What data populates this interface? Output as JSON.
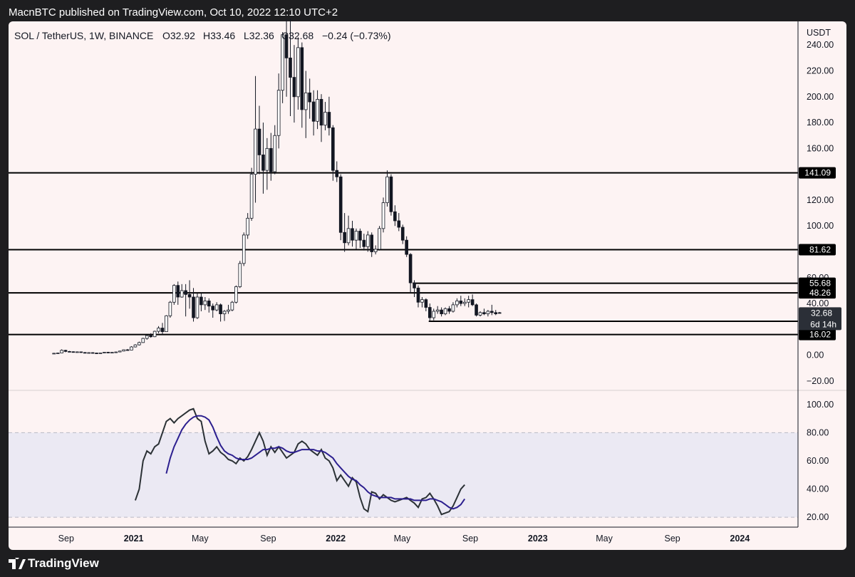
{
  "publisher_line": "MacnBTC published on TradingView.com, Oct 10, 2022 12:10 UTC+2",
  "brand": "TradingView",
  "colors": {
    "chart_bg": "#fdf3f3",
    "outer_bg": "#1e1e20",
    "rsi_band": "#ebe9f3",
    "rsi_ma": "#2c1f8f",
    "rsi_line": "#2b3135",
    "candle_stroke": "#131722"
  },
  "icons": {
    "brand_logo": "tradingview-logo-icon"
  },
  "chart_data": [
    {
      "type": "candlestick",
      "symbol": "SOL / TetherUS, 1W, BINANCE",
      "ohlc_label": {
        "open": "O32.92",
        "high": "H33.46",
        "low": "L32.36",
        "close": "C32.68",
        "change": "−0.24 (−0.73%)"
      },
      "currency_label": "USDT",
      "ylim": [
        -25,
        255
      ],
      "y_ticks": [
        "240.00",
        "220.00",
        "200.00",
        "180.00",
        "160.00",
        "140.00",
        "120.00",
        "100.00",
        "80.00",
        "60.00",
        "40.00",
        "20.00",
        "0.00",
        "−20.00"
      ],
      "x_ticks": [
        "Sep",
        "2021",
        "May",
        "Sep",
        "2022",
        "May",
        "Sep",
        "2023",
        "May",
        "Sep",
        "2024"
      ],
      "x_tick_dates": [
        "2020-09-01",
        "2021-01-01",
        "2021-05-01",
        "2021-09-01",
        "2022-01-01",
        "2022-05-01",
        "2022-09-01",
        "2023-01-01",
        "2023-05-01",
        "2023-09-01",
        "2024-01-01"
      ],
      "x_range": [
        "2020-05-20",
        "2024-04-15"
      ],
      "horizontal_levels": [
        {
          "value": 141.09,
          "label": "141.09",
          "start": "2020-05-20"
        },
        {
          "value": 81.62,
          "label": "81.62",
          "start": "2020-05-20"
        },
        {
          "value": 55.68,
          "label": "55.68",
          "start": "2022-05-20"
        },
        {
          "value": 48.26,
          "label": "48.26",
          "start": "2020-05-20"
        },
        {
          "value": 26.26,
          "label": "26.26",
          "start": "2022-06-18"
        },
        {
          "value": 16.02,
          "label": "16.02",
          "start": "2020-05-20"
        }
      ],
      "price_tag": {
        "value": 32.68,
        "label": "32.68",
        "countdown": "6d 14h"
      },
      "x_weekly_start": "2020-08-10",
      "candles": [
        [
          1.2,
          1.8,
          1.0,
          1.5
        ],
        [
          1.5,
          2.0,
          1.3,
          1.7
        ],
        [
          1.7,
          4.5,
          1.6,
          3.8
        ],
        [
          3.8,
          4.2,
          2.3,
          2.9
        ],
        [
          2.9,
          3.3,
          2.4,
          2.7
        ],
        [
          2.7,
          3.0,
          2.2,
          2.4
        ],
        [
          2.4,
          2.9,
          2.2,
          2.6
        ],
        [
          2.6,
          2.7,
          1.9,
          2.1
        ],
        [
          2.1,
          2.4,
          1.6,
          1.8
        ],
        [
          1.8,
          2.3,
          1.7,
          2.0
        ],
        [
          2.0,
          2.2,
          1.5,
          1.7
        ],
        [
          1.7,
          1.9,
          1.4,
          1.6
        ],
        [
          1.6,
          2.0,
          1.5,
          1.8
        ],
        [
          1.8,
          2.5,
          1.7,
          2.3
        ],
        [
          2.3,
          2.6,
          1.9,
          2.0
        ],
        [
          2.0,
          2.4,
          1.8,
          2.2
        ],
        [
          2.2,
          2.8,
          2.0,
          2.5
        ],
        [
          2.5,
          3.5,
          2.4,
          3.2
        ],
        [
          3.2,
          4.5,
          3.0,
          4.2
        ],
        [
          4.2,
          4.8,
          3.6,
          4.0
        ],
        [
          4.0,
          7.0,
          3.9,
          6.4
        ],
        [
          6.4,
          8.5,
          6.0,
          8.0
        ],
        [
          8.0,
          10.5,
          7.5,
          9.8
        ],
        [
          9.8,
          13.5,
          9.5,
          13.0
        ],
        [
          13.0,
          15.8,
          12.0,
          15.2
        ],
        [
          15.2,
          17.0,
          13.5,
          14.3
        ],
        [
          14.3,
          19.0,
          14.0,
          18.5
        ],
        [
          18.5,
          22.5,
          17.0,
          21.0
        ],
        [
          21.0,
          25.0,
          16.0,
          18.2
        ],
        [
          18.2,
          31.0,
          18.0,
          30.5
        ],
        [
          30.5,
          42.0,
          29.0,
          41.0
        ],
        [
          41.0,
          55.0,
          39.0,
          54.0
        ],
        [
          54.0,
          57.0,
          39.0,
          45.0
        ],
        [
          45.0,
          55.0,
          44.5,
          50.0
        ],
        [
          50.0,
          55.0,
          30.0,
          47.0
        ],
        [
          47.0,
          58.0,
          36.0,
          45.0
        ],
        [
          45.0,
          52.0,
          26.0,
          29.0
        ],
        [
          29.0,
          48.0,
          28.0,
          45.0
        ],
        [
          45.0,
          48.0,
          34.0,
          39.0
        ],
        [
          39.0,
          45.0,
          35.0,
          42.0
        ],
        [
          42.0,
          44.0,
          33.0,
          38.0
        ],
        [
          38.0,
          40.0,
          29.0,
          35.0
        ],
        [
          35.0,
          41.0,
          34.0,
          39.0
        ],
        [
          39.0,
          40.0,
          26.0,
          32.0
        ],
        [
          32.0,
          35.0,
          26.5,
          34.0
        ],
        [
          34.0,
          39.0,
          32.0,
          35.0
        ],
        [
          35.0,
          42.0,
          34.0,
          41.0
        ],
        [
          41.0,
          54.0,
          40.0,
          53.0
        ],
        [
          53.0,
          73.0,
          52.0,
          71.0
        ],
        [
          71.0,
          95.0,
          69.0,
          93.0
        ],
        [
          93.0,
          110.0,
          90.0,
          106.0
        ],
        [
          106.0,
          145.0,
          104.0,
          140.0
        ],
        [
          140.0,
          216.0,
          118.0,
          175.0
        ],
        [
          175.0,
          193.0,
          140.0,
          155.0
        ],
        [
          155.0,
          180.0,
          125.0,
          143.0
        ],
        [
          143.0,
          168.0,
          128.0,
          160.0
        ],
        [
          160.0,
          172.0,
          135.0,
          142.0
        ],
        [
          142.0,
          178.0,
          140.0,
          170.0
        ],
        [
          170.0,
          218.0,
          160.0,
          205.0
        ],
        [
          205.0,
          250.0,
          195.0,
          248.0
        ],
        [
          248.0,
          260.0,
          200.0,
          230.0
        ],
        [
          230.0,
          260.0,
          185.0,
          215.0
        ],
        [
          215.0,
          240.0,
          180.0,
          200.0
        ],
        [
          200.0,
          246.0,
          190.0,
          238.0
        ],
        [
          238.0,
          242.0,
          176.0,
          190.0
        ],
        [
          190.0,
          220.0,
          168.0,
          203.0
        ],
        [
          203.0,
          214.0,
          183.0,
          196.0
        ],
        [
          196.0,
          205.0,
          170.0,
          181.0
        ],
        [
          181.0,
          205.0,
          175.0,
          198.0
        ],
        [
          198.0,
          202.0,
          165.0,
          178.0
        ],
        [
          178.0,
          196.0,
          174.0,
          188.0
        ],
        [
          188.0,
          200.0,
          170.0,
          176.0
        ],
        [
          176.0,
          178.0,
          135.0,
          143.0
        ],
        [
          143.0,
          150.0,
          134.0,
          138.0
        ],
        [
          138.0,
          140.0,
          89.0,
          95.0
        ],
        [
          95.0,
          110.0,
          80.0,
          87.0
        ],
        [
          87.0,
          108.0,
          85.0,
          98.0
        ],
        [
          98.0,
          104.0,
          84.0,
          89.0
        ],
        [
          89.0,
          98.0,
          82.0,
          96.0
        ],
        [
          96.0,
          98.0,
          83.0,
          89.0
        ],
        [
          89.0,
          94.0,
          81.0,
          84.0
        ],
        [
          84.0,
          96.0,
          80.0,
          93.0
        ],
        [
          93.0,
          95.0,
          76.0,
          80.0
        ],
        [
          80.0,
          85.0,
          78.0,
          82.0
        ],
        [
          82.0,
          100.0,
          81.0,
          98.0
        ],
        [
          98.0,
          122.0,
          95.0,
          118.0
        ],
        [
          118.0,
          143.0,
          115.0,
          138.0
        ],
        [
          138.0,
          140.0,
          108.0,
          111.0
        ],
        [
          111.0,
          116.0,
          100.0,
          104.0
        ],
        [
          104.0,
          110.0,
          96.0,
          99.0
        ],
        [
          99.0,
          101.0,
          86.0,
          89.0
        ],
        [
          89.0,
          92.0,
          76.0,
          78.0
        ],
        [
          78.0,
          79.0,
          48.0,
          56.0
        ],
        [
          56.0,
          58.0,
          45.0,
          52.0
        ],
        [
          52.0,
          54.0,
          37.0,
          41.0
        ],
        [
          41.0,
          45.0,
          37.0,
          43.0
        ],
        [
          43.0,
          44.0,
          34.0,
          37.0
        ],
        [
          37.0,
          40.0,
          26.0,
          29.0
        ],
        [
          29.0,
          36.0,
          27.0,
          34.0
        ],
        [
          34.0,
          38.0,
          32.0,
          35.0
        ],
        [
          35.0,
          37.0,
          30.0,
          32.0
        ],
        [
          32.0,
          37.0,
          31.0,
          36.0
        ],
        [
          36.0,
          38.0,
          32.0,
          34.0
        ],
        [
          34.0,
          41.0,
          33.0,
          39.0
        ],
        [
          39.0,
          44.0,
          37.0,
          42.0
        ],
        [
          42.0,
          46.0,
          38.0,
          40.0
        ],
        [
          40.0,
          44.0,
          38.0,
          41.0
        ],
        [
          41.0,
          46.0,
          37.0,
          43.0
        ],
        [
          43.0,
          47.0,
          38.0,
          39.0
        ],
        [
          39.0,
          40.0,
          30.0,
          31.0
        ],
        [
          31.0,
          34.0,
          30.0,
          33.0
        ],
        [
          33.0,
          36.0,
          31.0,
          32.0
        ],
        [
          32.0,
          35.0,
          30.0,
          34.0
        ],
        [
          34.0,
          39.0,
          31.0,
          33.0
        ],
        [
          33.0,
          35.0,
          31.0,
          32.0
        ],
        [
          32.92,
          33.46,
          32.36,
          32.68
        ]
      ],
      "candle_field_order": [
        "open",
        "high",
        "low",
        "close"
      ]
    },
    {
      "type": "line",
      "panel": "rsi",
      "ylim": [
        14,
        108
      ],
      "y_ticks": [
        "100.00",
        "80.00",
        "60.00",
        "40.00",
        "20.00"
      ],
      "band": [
        20,
        80
      ],
      "x_start": "2021-01-04",
      "x_step_days": 7,
      "series": [
        {
          "color": "#2b3135",
          "values": [
            32,
            40,
            60,
            67,
            65,
            70,
            72,
            80,
            88,
            90,
            87,
            90,
            92,
            94,
            96,
            97,
            90,
            88,
            74,
            65,
            67,
            70,
            66,
            64,
            61,
            60,
            58,
            62,
            60,
            63,
            68,
            74,
            80,
            74,
            64,
            70,
            66,
            70,
            66,
            62,
            64,
            66,
            72,
            74,
            72,
            68,
            66,
            64,
            68,
            62,
            60,
            55,
            46,
            50,
            46,
            42,
            48,
            45,
            34,
            26,
            24,
            38,
            37,
            33,
            36,
            34,
            32,
            31,
            32,
            33,
            34,
            32,
            30,
            27,
            33,
            34,
            37,
            33,
            28,
            22,
            23,
            24,
            28,
            34,
            40,
            43
          ]
        },
        {
          "color": "#2c1f8f",
          "values": [
            null,
            null,
            null,
            null,
            null,
            null,
            null,
            null,
            51,
            62,
            70,
            76,
            82,
            86,
            89,
            91,
            92,
            92,
            91,
            89,
            84,
            77,
            71,
            67,
            65,
            64,
            62,
            61,
            61,
            61,
            62,
            64,
            66,
            68,
            68,
            69,
            69,
            70,
            69,
            67,
            66,
            66,
            67,
            68,
            68,
            68,
            68,
            67,
            67,
            66,
            64,
            62,
            58,
            55,
            52,
            49,
            47,
            46,
            43,
            41,
            38,
            36,
            35,
            34,
            34,
            34,
            34,
            33,
            33,
            33,
            33,
            33,
            32,
            32,
            32,
            32,
            33,
            33,
            32,
            31,
            29,
            27,
            26,
            27,
            29,
            33
          ]
        }
      ]
    }
  ]
}
